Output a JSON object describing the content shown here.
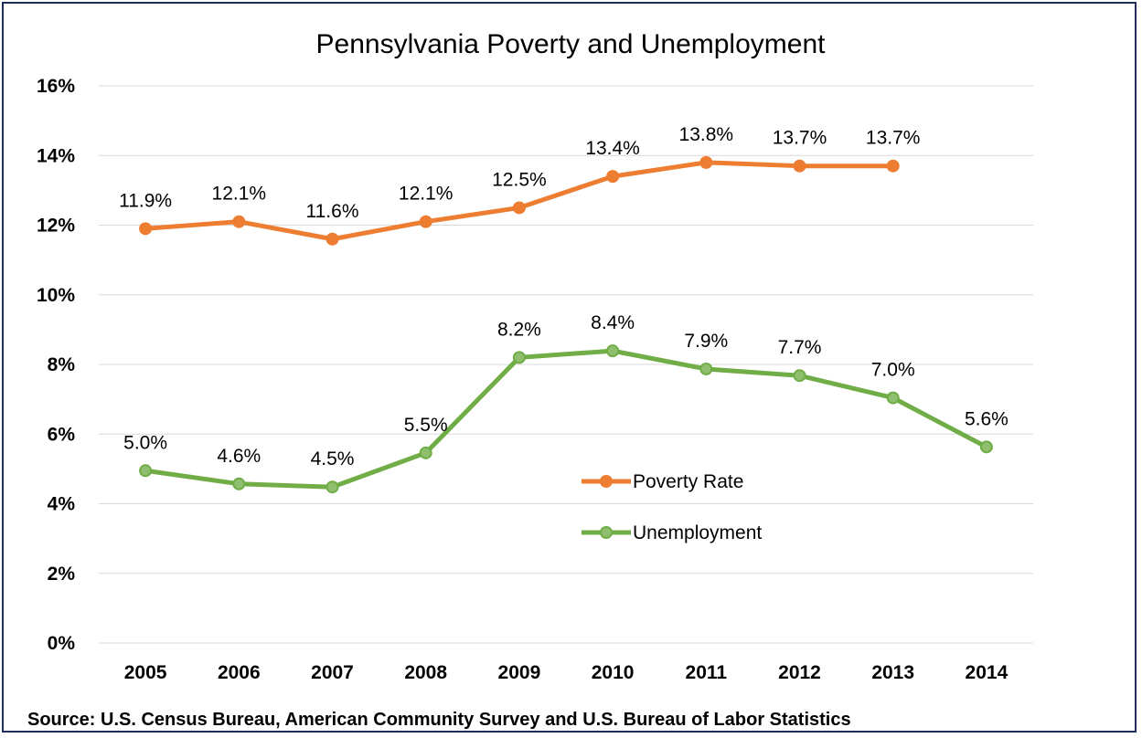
{
  "chart_data": {
    "type": "line",
    "title": "Pennsylvania Poverty and Unemployment",
    "categories": [
      "2005",
      "2006",
      "2007",
      "2008",
      "2009",
      "2010",
      "2011",
      "2012",
      "2013",
      "2014"
    ],
    "ylim": [
      0,
      16
    ],
    "yticks": [
      0,
      2,
      4,
      6,
      8,
      10,
      12,
      14,
      16
    ],
    "ytick_labels": [
      "0%",
      "2%",
      "4%",
      "6%",
      "8%",
      "10%",
      "12%",
      "14%",
      "16%"
    ],
    "grid": true,
    "legend_position": "center-right",
    "series": [
      {
        "name": "Poverty Rate",
        "color": "#ed7d31",
        "values": [
          11.9,
          12.1,
          11.6,
          12.1,
          12.5,
          13.4,
          13.8,
          13.7,
          13.7,
          null
        ],
        "labels": [
          "11.9%",
          "12.1%",
          "11.6%",
          "12.1%",
          "12.5%",
          "13.4%",
          "13.8%",
          "13.7%",
          "13.7%",
          ""
        ]
      },
      {
        "name": "Unemployment",
        "color": "#70ad47",
        "values": [
          4.95,
          4.57,
          4.48,
          5.46,
          8.2,
          8.39,
          7.87,
          7.68,
          7.04,
          5.63
        ],
        "labels": [
          "5.0%",
          "4.6%",
          "4.5%",
          "5.5%",
          "8.2%",
          "8.4%",
          "7.9%",
          "7.7%",
          "7.0%",
          "5.6%"
        ]
      }
    ],
    "source": "Source: U.S. Census Bureau, American Community Survey and U.S. Bureau of Labor Statistics"
  }
}
